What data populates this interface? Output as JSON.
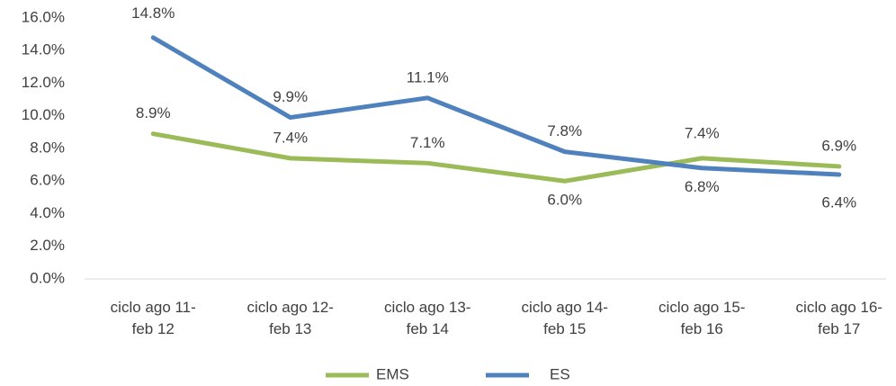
{
  "chart_data": {
    "type": "line",
    "categories": [
      "ciclo ago 11-feb 12",
      "ciclo ago 12-feb 13",
      "ciclo ago 13-feb 14",
      "ciclo ago 14-feb 15",
      "ciclo ago 15-feb 16",
      "ciclo ago 16-feb 17"
    ],
    "series": [
      {
        "name": "EMS",
        "color": "#9bbb59",
        "values": [
          8.9,
          7.4,
          7.1,
          6.0,
          7.4,
          6.9
        ],
        "value_labels": [
          "8.9%",
          "7.4%",
          "7.1%",
          "6.0%",
          "7.4%",
          "6.9%"
        ]
      },
      {
        "name": "ES",
        "color": "#4f81bd",
        "values": [
          14.8,
          9.9,
          11.1,
          7.8,
          6.8,
          6.4
        ],
        "value_labels": [
          "14.8%",
          "9.9%",
          "11.1%",
          "7.8%",
          "6.8%",
          "6.4%"
        ]
      }
    ],
    "ylim": [
      0,
      16
    ],
    "yticks": [
      {
        "value": 0,
        "label": "0.0%"
      },
      {
        "value": 2,
        "label": "2.0%"
      },
      {
        "value": 4,
        "label": "4.0%"
      },
      {
        "value": 6,
        "label": "6.0%"
      },
      {
        "value": 8,
        "label": "8.0%"
      },
      {
        "value": 10,
        "label": "10.0%"
      },
      {
        "value": 12,
        "label": "12.0%"
      },
      {
        "value": 14,
        "label": "14.0%"
      },
      {
        "value": 16,
        "label": "16.0%"
      }
    ],
    "grid": false,
    "legend": "bottom"
  }
}
